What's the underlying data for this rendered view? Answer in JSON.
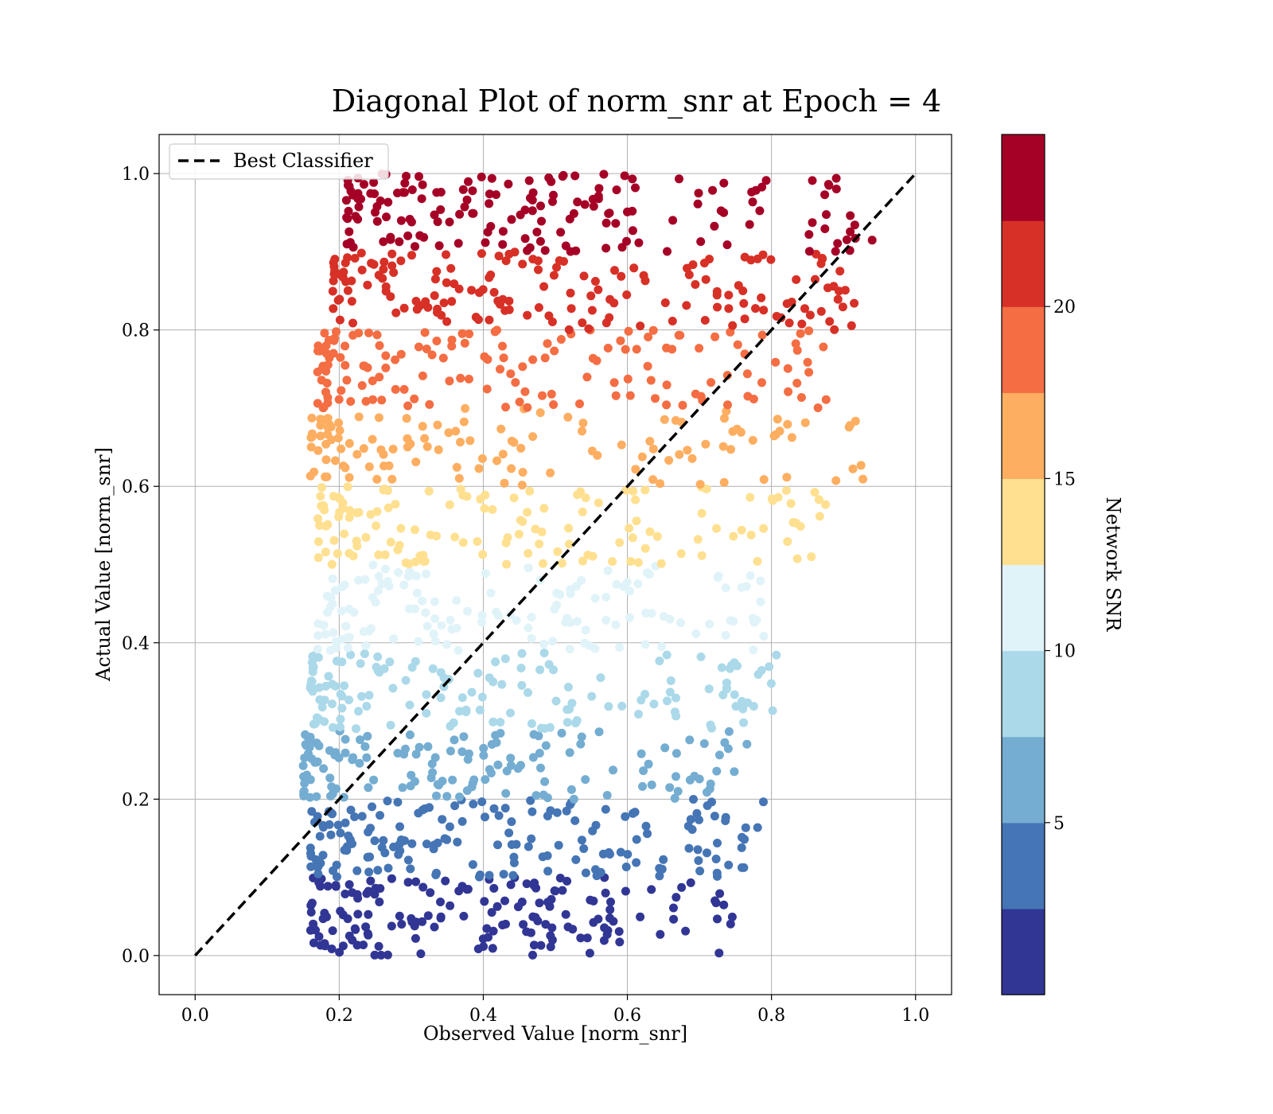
{
  "chart_data": {
    "type": "scatter",
    "title": "Diagonal Plot of norm_snr at Epoch = 4",
    "xlabel": "Observed Value [norm_snr]",
    "ylabel": "Actual Value [norm_snr]",
    "xlim": [
      -0.05,
      1.05
    ],
    "ylim": [
      -0.05,
      1.05
    ],
    "xticks": [
      "0.0",
      "0.2",
      "0.4",
      "0.6",
      "0.8",
      "1.0"
    ],
    "yticks": [
      "0.0",
      "0.2",
      "0.4",
      "0.6",
      "0.8",
      "1.0"
    ],
    "grid": true,
    "legend": {
      "placement": "top-left",
      "entries": [
        "Best Classifier"
      ]
    },
    "reference_line": {
      "name": "Best Classifier",
      "style": "dashed",
      "color": "#000000",
      "x": [
        0,
        1
      ],
      "y": [
        0,
        1
      ]
    },
    "colorbar": {
      "label": "Network SNR",
      "range": [
        0,
        25
      ],
      "ticks": [
        "5",
        "10",
        "15",
        "20"
      ],
      "colors": [
        "#313695",
        "#4575b4",
        "#74add1",
        "#abd9e9",
        "#e0f3f8",
        "#fee090",
        "#fdae61",
        "#f46d43",
        "#d73027",
        "#a50026"
      ]
    },
    "point_bands": [
      {
        "ymin": 0.0,
        "ymax": 0.1,
        "xmin": 0.16,
        "xmax": 0.75,
        "snr": 1.2,
        "count": 170
      },
      {
        "ymin": 0.1,
        "ymax": 0.2,
        "xmin": 0.16,
        "xmax": 0.8,
        "snr": 3.7,
        "count": 170
      },
      {
        "ymin": 0.2,
        "ymax": 0.29,
        "xmin": 0.15,
        "xmax": 0.77,
        "snr": 6.2,
        "count": 145
      },
      {
        "ymin": 0.29,
        "ymax": 0.39,
        "xmin": 0.16,
        "xmax": 0.84,
        "snr": 8.7,
        "count": 145
      },
      {
        "ymin": 0.39,
        "ymax": 0.5,
        "xmin": 0.17,
        "xmax": 0.79,
        "snr": 11.2,
        "count": 140
      },
      {
        "ymin": 0.5,
        "ymax": 0.6,
        "xmin": 0.17,
        "xmax": 0.9,
        "snr": 13.7,
        "count": 140
      },
      {
        "ymin": 0.6,
        "ymax": 0.7,
        "xmin": 0.16,
        "xmax": 0.94,
        "snr": 16.2,
        "count": 125
      },
      {
        "ymin": 0.7,
        "ymax": 0.8,
        "xmin": 0.17,
        "xmax": 0.89,
        "snr": 18.7,
        "count": 150
      },
      {
        "ymin": 0.8,
        "ymax": 0.9,
        "xmin": 0.19,
        "xmax": 0.92,
        "snr": 21.2,
        "count": 170
      },
      {
        "ymin": 0.9,
        "ymax": 1.0,
        "xmin": 0.21,
        "xmax": 0.94,
        "snr": 23.7,
        "count": 170
      }
    ]
  }
}
